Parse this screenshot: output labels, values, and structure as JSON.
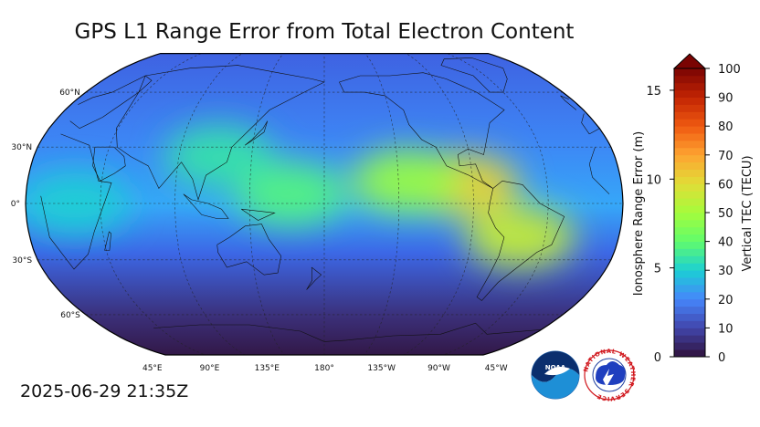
{
  "title": "GPS L1 Range Error from Total Electron Content",
  "timestamp": "2025-06-29 21:35Z",
  "map": {
    "projection": "robinson",
    "central_longitude": -180,
    "lat_labels": [
      "60°N",
      "30°N",
      "0°",
      "30°S",
      "60°S"
    ],
    "lon_labels": [
      "45°E",
      "90°E",
      "135°E",
      "180°",
      "135°W",
      "90°W",
      "45°W"
    ],
    "tec_blobs": [
      {
        "lon": -95,
        "lat": 10,
        "tec": 62
      },
      {
        "lon": -130,
        "lat": 12,
        "tec": 48
      },
      {
        "lon": -60,
        "lat": -18,
        "tec": 55
      },
      {
        "lon": 160,
        "lat": 5,
        "tec": 38
      },
      {
        "lon": 115,
        "lat": 25,
        "tec": 34
      },
      {
        "lon": 30,
        "lat": 0,
        "tec": 30
      }
    ]
  },
  "colorbar": {
    "tec_label": "Vertical TEC (TECU)",
    "range_label": "Ionosphere Range Error (m)",
    "tec_ticks": [
      "0",
      "10",
      "20",
      "30",
      "40",
      "50",
      "60",
      "70",
      "80",
      "90",
      "100"
    ],
    "range_ticks": [
      "0",
      "5",
      "10",
      "15"
    ],
    "tec_min": 0,
    "tec_max": 100,
    "extend": "max"
  },
  "logos": {
    "noaa": "NOAA",
    "nws": "NATIONAL WEATHER SERVICE"
  },
  "colors": {
    "low": "#30123b",
    "mid_blue": "#4686fb",
    "cyan": "#1ae4b6",
    "green": "#a2fc3c",
    "yellow": "#fabb39",
    "high": "#7a0403"
  }
}
